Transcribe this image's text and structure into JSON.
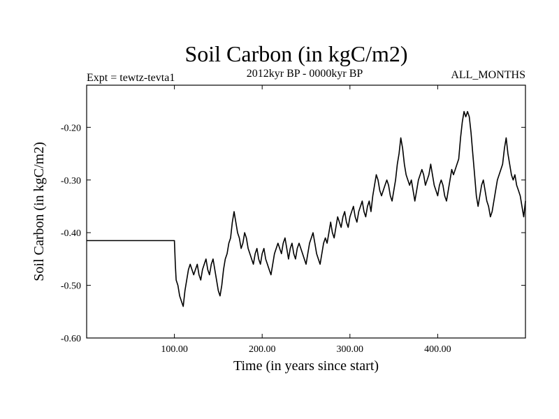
{
  "chart_data": {
    "type": "line",
    "title": "Soil Carbon (in kgC/m2)",
    "subtitle": "2012kyr BP - 0000kyr BP",
    "left_annotation": "Expt = tewtz-tevta1",
    "right_annotation": "ALL_MONTHS",
    "xlabel": "Time (in years since start)",
    "ylabel": "Soil Carbon (in kgC/m2)",
    "xlim": [
      0,
      500
    ],
    "ylim": [
      -0.6,
      -0.12
    ],
    "x_ticks": [
      100,
      200,
      300,
      400
    ],
    "x_tick_labels": [
      "100.00",
      "200.00",
      "300.00",
      "400.00"
    ],
    "y_ticks": [
      -0.6,
      -0.5,
      -0.4,
      -0.3,
      -0.2
    ],
    "y_tick_labels": [
      "-0.60",
      "-0.50",
      "-0.40",
      "-0.30",
      "-0.20"
    ],
    "grid": false,
    "series": [
      {
        "name": "Soil Carbon",
        "color": "#000000",
        "x": [
          0,
          99,
          100,
          101,
          102,
          104,
          106,
          108,
          110,
          112,
          114,
          116,
          118,
          120,
          122,
          124,
          126,
          128,
          130,
          132,
          134,
          136,
          138,
          140,
          142,
          144,
          146,
          148,
          150,
          152,
          154,
          156,
          158,
          160,
          162,
          164,
          166,
          168,
          170,
          172,
          174,
          176,
          178,
          180,
          182,
          184,
          186,
          188,
          190,
          192,
          194,
          196,
          198,
          200,
          202,
          204,
          206,
          208,
          210,
          212,
          214,
          216,
          218,
          220,
          222,
          224,
          226,
          228,
          230,
          232,
          234,
          236,
          238,
          240,
          242,
          244,
          246,
          248,
          250,
          252,
          254,
          256,
          258,
          260,
          262,
          264,
          266,
          268,
          270,
          272,
          274,
          276,
          278,
          280,
          282,
          284,
          286,
          288,
          290,
          292,
          294,
          296,
          298,
          300,
          302,
          304,
          306,
          308,
          310,
          312,
          314,
          316,
          318,
          320,
          322,
          324,
          326,
          328,
          330,
          332,
          334,
          336,
          338,
          340,
          342,
          344,
          346,
          348,
          350,
          352,
          354,
          356,
          358,
          360,
          362,
          364,
          366,
          368,
          370,
          372,
          374,
          376,
          378,
          380,
          382,
          384,
          386,
          388,
          390,
          392,
          394,
          396,
          398,
          400,
          402,
          404,
          406,
          408,
          410,
          412,
          414,
          416,
          418,
          420,
          422,
          424,
          426,
          428,
          430,
          432,
          434,
          436,
          438,
          440,
          442,
          444,
          446,
          448,
          450,
          452,
          454,
          456,
          458,
          460,
          462,
          464,
          466,
          468,
          470,
          472,
          474,
          476,
          478,
          480,
          482,
          484,
          486,
          488,
          490,
          492,
          494,
          496,
          498,
          500
        ],
        "y": [
          -0.415,
          -0.415,
          -0.415,
          -0.46,
          -0.49,
          -0.5,
          -0.52,
          -0.53,
          -0.54,
          -0.51,
          -0.49,
          -0.47,
          -0.46,
          -0.47,
          -0.48,
          -0.47,
          -0.46,
          -0.48,
          -0.49,
          -0.47,
          -0.46,
          -0.45,
          -0.47,
          -0.48,
          -0.46,
          -0.45,
          -0.47,
          -0.49,
          -0.51,
          -0.52,
          -0.5,
          -0.47,
          -0.45,
          -0.44,
          -0.42,
          -0.41,
          -0.38,
          -0.36,
          -0.38,
          -0.4,
          -0.41,
          -0.43,
          -0.42,
          -0.4,
          -0.41,
          -0.43,
          -0.44,
          -0.45,
          -0.46,
          -0.44,
          -0.43,
          -0.45,
          -0.46,
          -0.44,
          -0.43,
          -0.45,
          -0.46,
          -0.47,
          -0.48,
          -0.46,
          -0.44,
          -0.43,
          -0.42,
          -0.43,
          -0.44,
          -0.42,
          -0.41,
          -0.43,
          -0.45,
          -0.43,
          -0.42,
          -0.44,
          -0.45,
          -0.43,
          -0.42,
          -0.43,
          -0.44,
          -0.45,
          -0.46,
          -0.44,
          -0.42,
          -0.41,
          -0.4,
          -0.42,
          -0.44,
          -0.45,
          -0.46,
          -0.44,
          -0.42,
          -0.41,
          -0.42,
          -0.4,
          -0.38,
          -0.4,
          -0.41,
          -0.39,
          -0.37,
          -0.38,
          -0.39,
          -0.37,
          -0.36,
          -0.38,
          -0.39,
          -0.37,
          -0.36,
          -0.35,
          -0.37,
          -0.38,
          -0.36,
          -0.35,
          -0.34,
          -0.36,
          -0.37,
          -0.35,
          -0.34,
          -0.36,
          -0.33,
          -0.31,
          -0.29,
          -0.3,
          -0.32,
          -0.33,
          -0.32,
          -0.31,
          -0.3,
          -0.31,
          -0.33,
          -0.34,
          -0.32,
          -0.3,
          -0.27,
          -0.25,
          -0.22,
          -0.24,
          -0.27,
          -0.29,
          -0.3,
          -0.31,
          -0.3,
          -0.32,
          -0.34,
          -0.32,
          -0.3,
          -0.29,
          -0.28,
          -0.29,
          -0.31,
          -0.3,
          -0.29,
          -0.27,
          -0.29,
          -0.31,
          -0.32,
          -0.33,
          -0.31,
          -0.3,
          -0.31,
          -0.33,
          -0.34,
          -0.32,
          -0.3,
          -0.28,
          -0.29,
          -0.28,
          -0.27,
          -0.26,
          -0.22,
          -0.19,
          -0.17,
          -0.18,
          -0.17,
          -0.18,
          -0.21,
          -0.25,
          -0.29,
          -0.33,
          -0.35,
          -0.33,
          -0.31,
          -0.3,
          -0.32,
          -0.34,
          -0.35,
          -0.37,
          -0.36,
          -0.34,
          -0.32,
          -0.3,
          -0.29,
          -0.28,
          -0.27,
          -0.24,
          -0.22,
          -0.25,
          -0.27,
          -0.29,
          -0.3,
          -0.29,
          -0.31,
          -0.32,
          -0.33,
          -0.35,
          -0.37,
          -0.34
        ]
      }
    ]
  }
}
